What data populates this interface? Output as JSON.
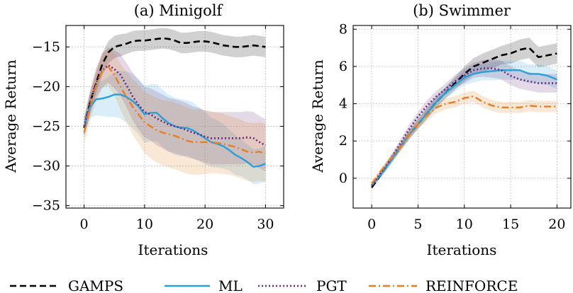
{
  "colors": {
    "GAMPS": "#000000",
    "ML": "#2b9fd8",
    "PGT": "#6b2a7c",
    "REINFORCE": "#e67e22"
  },
  "legend": [
    {
      "key": "GAMPS",
      "label": "GAMPS",
      "style": "dashed"
    },
    {
      "key": "ML",
      "label": "ML",
      "style": "solid"
    },
    {
      "key": "PGT",
      "label": "PGT",
      "style": "dotted"
    },
    {
      "key": "REINFORCE",
      "label": "REINFORCE",
      "style": "dashdot"
    }
  ],
  "chart_data": [
    {
      "type": "line",
      "title": "(a) Minigolf",
      "xlabel": "Iterations",
      "ylabel": "Average Return",
      "xlim": [
        -3,
        33
      ],
      "ylim": [
        -35.3,
        -12.3
      ],
      "xticks": [
        0,
        10,
        20,
        30
      ],
      "yticks": [
        -35,
        -30,
        -25,
        -20,
        -15
      ],
      "grid": true,
      "x": [
        0,
        1,
        2,
        3,
        4,
        5,
        6,
        7,
        8,
        9,
        10,
        11,
        12,
        13,
        14,
        15,
        16,
        17,
        18,
        19,
        20,
        21,
        22,
        23,
        24,
        25,
        26,
        27,
        28,
        29,
        30
      ],
      "series": [
        {
          "name": "GAMPS",
          "values": [
            -25.2,
            -22.0,
            -19.5,
            -17.2,
            -15.7,
            -15.0,
            -14.8,
            -14.6,
            -14.3,
            -14.2,
            -14.2,
            -14.1,
            -14.0,
            -13.9,
            -14.0,
            -14.2,
            -14.5,
            -14.5,
            -14.4,
            -14.3,
            -14.3,
            -14.4,
            -14.6,
            -14.8,
            -14.9,
            -15.0,
            -15.0,
            -14.9,
            -14.8,
            -14.9,
            -15.0
          ],
          "band": [
            1.2,
            1.3,
            1.3,
            1.4,
            1.4,
            1.4,
            1.4,
            1.3,
            1.3,
            1.3,
            1.3,
            1.3,
            1.3,
            1.3,
            1.3,
            1.3,
            1.3,
            1.3,
            1.3,
            1.3,
            1.3,
            1.3,
            1.3,
            1.3,
            1.3,
            1.3,
            1.3,
            1.3,
            1.3,
            1.3,
            1.3
          ]
        },
        {
          "name": "ML",
          "values": [
            -25.0,
            -22.5,
            -21.6,
            -21.5,
            -21.3,
            -21.0,
            -21.0,
            -21.3,
            -21.8,
            -22.5,
            -23.5,
            -23.3,
            -23.3,
            -24.0,
            -24.6,
            -25.0,
            -25.2,
            -25.2,
            -25.5,
            -26.0,
            -26.5,
            -27.0,
            -27.2,
            -27.5,
            -28.0,
            -28.6,
            -29.0,
            -29.5,
            -30.1,
            -30.0,
            -29.7
          ],
          "band": [
            1.0,
            1.5,
            2.0,
            2.2,
            2.5,
            2.8,
            3.0,
            3.2,
            3.4,
            3.5,
            3.6,
            3.6,
            3.6,
            3.6,
            3.6,
            3.6,
            3.6,
            3.5,
            3.5,
            3.4,
            3.3,
            3.1,
            3.0,
            2.8,
            2.6,
            2.5,
            2.3,
            2.2,
            2.2,
            2.2,
            2.2
          ]
        },
        {
          "name": "PGT",
          "values": [
            -25.0,
            -22.0,
            -19.5,
            -18.0,
            -17.3,
            -17.8,
            -18.5,
            -19.8,
            -21.2,
            -22.3,
            -23.2,
            -23.5,
            -24.0,
            -24.4,
            -24.8,
            -25.0,
            -25.2,
            -25.5,
            -25.8,
            -26.0,
            -26.3,
            -26.5,
            -26.5,
            -26.5,
            -26.5,
            -26.5,
            -26.5,
            -26.4,
            -26.5,
            -27.0,
            -27.4
          ],
          "band": [
            1.2,
            1.6,
            1.9,
            2.1,
            2.2,
            2.4,
            2.6,
            2.8,
            3.0,
            3.1,
            3.2,
            3.3,
            3.4,
            3.4,
            3.4,
            3.4,
            3.4,
            3.4,
            3.3,
            3.3,
            3.3,
            3.3,
            3.3,
            3.3,
            3.3,
            3.3,
            3.3,
            3.3,
            3.3,
            3.3,
            3.3
          ]
        },
        {
          "name": "REINFORCE",
          "values": [
            -25.8,
            -22.5,
            -19.8,
            -18.0,
            -17.5,
            -18.5,
            -20.0,
            -21.3,
            -22.5,
            -23.5,
            -24.5,
            -25.0,
            -25.5,
            -25.8,
            -26.0,
            -26.2,
            -26.5,
            -26.8,
            -27.0,
            -27.0,
            -27.0,
            -27.0,
            -27.1,
            -27.2,
            -27.4,
            -27.6,
            -27.9,
            -28.2,
            -28.3,
            -28.2,
            -28.4
          ],
          "band": [
            1.4,
            1.7,
            2.0,
            2.2,
            2.4,
            2.6,
            2.9,
            3.2,
            3.5,
            3.7,
            3.9,
            4.0,
            4.1,
            4.1,
            4.2,
            4.2,
            4.2,
            4.2,
            4.1,
            4.1,
            4.0,
            3.9,
            3.8,
            3.8,
            3.7,
            3.7,
            3.7,
            3.7,
            3.7,
            3.7,
            3.7
          ]
        }
      ]
    },
    {
      "type": "line",
      "title": "(b) Swimmer",
      "xlabel": "Iterations",
      "ylabel": "Average Return",
      "xlim": [
        -2,
        21.5
      ],
      "ylim": [
        -1.6,
        8.2
      ],
      "xticks": [
        0,
        5,
        10,
        15,
        20
      ],
      "yticks": [
        0,
        2,
        4,
        6,
        8
      ],
      "grid": true,
      "x": [
        0,
        1,
        2,
        3,
        4,
        5,
        6,
        7,
        8,
        9,
        10,
        11,
        12,
        13,
        14,
        15,
        16,
        17,
        18,
        19,
        20
      ],
      "series": [
        {
          "name": "GAMPS",
          "values": [
            -0.5,
            0.2,
            0.9,
            1.6,
            2.3,
            2.9,
            3.5,
            4.1,
            4.6,
            5.1,
            5.6,
            6.0,
            6.2,
            6.4,
            6.6,
            6.7,
            6.9,
            7.0,
            6.5,
            6.6,
            6.7
          ],
          "band": [
            0.1,
            0.15,
            0.2,
            0.2,
            0.25,
            0.25,
            0.3,
            0.3,
            0.3,
            0.35,
            0.4,
            0.45,
            0.5,
            0.5,
            0.5,
            0.55,
            0.55,
            0.55,
            0.55,
            0.55,
            0.55
          ]
        },
        {
          "name": "ML",
          "values": [
            -0.4,
            0.2,
            0.9,
            1.6,
            2.3,
            2.9,
            3.5,
            4.1,
            4.6,
            5.0,
            5.4,
            5.6,
            5.7,
            5.75,
            5.8,
            5.8,
            5.8,
            5.6,
            5.6,
            5.5,
            5.3
          ],
          "band": [
            0.1,
            0.15,
            0.2,
            0.2,
            0.25,
            0.25,
            0.3,
            0.3,
            0.3,
            0.35,
            0.4,
            0.45,
            0.45,
            0.5,
            0.5,
            0.5,
            0.5,
            0.5,
            0.5,
            0.5,
            0.5
          ]
        },
        {
          "name": "PGT",
          "values": [
            -0.4,
            0.3,
            1.0,
            1.8,
            2.6,
            3.3,
            3.9,
            4.4,
            4.8,
            5.2,
            5.5,
            5.8,
            5.9,
            5.9,
            5.8,
            5.5,
            5.3,
            5.2,
            5.1,
            5.1,
            5.1
          ],
          "band": [
            0.1,
            0.15,
            0.2,
            0.2,
            0.25,
            0.25,
            0.3,
            0.3,
            0.3,
            0.35,
            0.4,
            0.4,
            0.45,
            0.5,
            0.5,
            0.5,
            0.5,
            0.5,
            0.5,
            0.5,
            0.5
          ]
        },
        {
          "name": "REINFORCE",
          "values": [
            -0.3,
            0.4,
            1.0,
            1.6,
            2.3,
            2.9,
            3.4,
            3.8,
            4.0,
            4.1,
            4.3,
            4.4,
            4.1,
            3.9,
            3.8,
            3.8,
            3.8,
            3.9,
            3.85,
            3.85,
            3.85
          ],
          "band": [
            0.1,
            0.15,
            0.2,
            0.2,
            0.25,
            0.25,
            0.3,
            0.3,
            0.3,
            0.3,
            0.3,
            0.3,
            0.3,
            0.3,
            0.3,
            0.3,
            0.3,
            0.3,
            0.3,
            0.3,
            0.3
          ]
        }
      ]
    }
  ]
}
